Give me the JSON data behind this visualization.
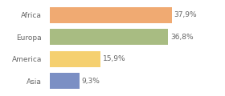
{
  "categories": [
    "Africa",
    "Europa",
    "America",
    "Asia"
  ],
  "values": [
    37.9,
    36.8,
    15.9,
    9.3
  ],
  "labels": [
    "37,9%",
    "36,8%",
    "15,9%",
    "9,3%"
  ],
  "bar_colors": [
    "#f0aa72",
    "#a8bc82",
    "#f5d070",
    "#7b8fc4"
  ],
  "background_color": "#ffffff",
  "xlim": [
    0,
    46
  ],
  "label_fontsize": 6.5,
  "category_fontsize": 6.5,
  "bar_height": 0.72
}
